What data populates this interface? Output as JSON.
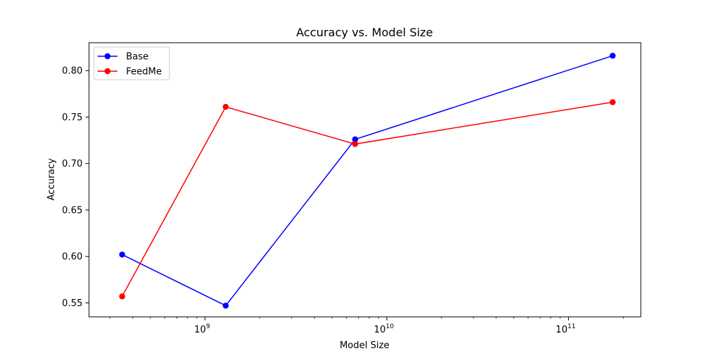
{
  "chart_data": {
    "type": "line",
    "title": "Accuracy vs. Model Size",
    "xlabel": "Model Size",
    "ylabel": "Accuracy",
    "xscale": "log",
    "xlim": [
      230000000.0,
      250000000000.0
    ],
    "ylim": [
      0.535,
      0.83
    ],
    "xticks": [
      {
        "value": 1000000000.0,
        "base": "10",
        "exp": "9"
      },
      {
        "value": 10000000000.0,
        "base": "10",
        "exp": "10"
      },
      {
        "value": 100000000000.0,
        "base": "10",
        "exp": "11"
      }
    ],
    "yticks": [
      {
        "value": 0.55,
        "label": "0.55"
      },
      {
        "value": 0.6,
        "label": "0.60"
      },
      {
        "value": 0.65,
        "label": "0.65"
      },
      {
        "value": 0.7,
        "label": "0.70"
      },
      {
        "value": 0.75,
        "label": "0.75"
      },
      {
        "value": 0.8,
        "label": "0.80"
      }
    ],
    "x": [
      350000000.0,
      1300000000.0,
      6700000000.0,
      175000000000.0
    ],
    "series": [
      {
        "name": "Base",
        "color": "#0000ff",
        "values": [
          0.602,
          0.547,
          0.726,
          0.816
        ]
      },
      {
        "name": "FeedMe",
        "color": "#ff0000",
        "values": [
          0.557,
          0.761,
          0.721,
          0.766
        ]
      }
    ],
    "legend": "top-left",
    "grid": false
  }
}
